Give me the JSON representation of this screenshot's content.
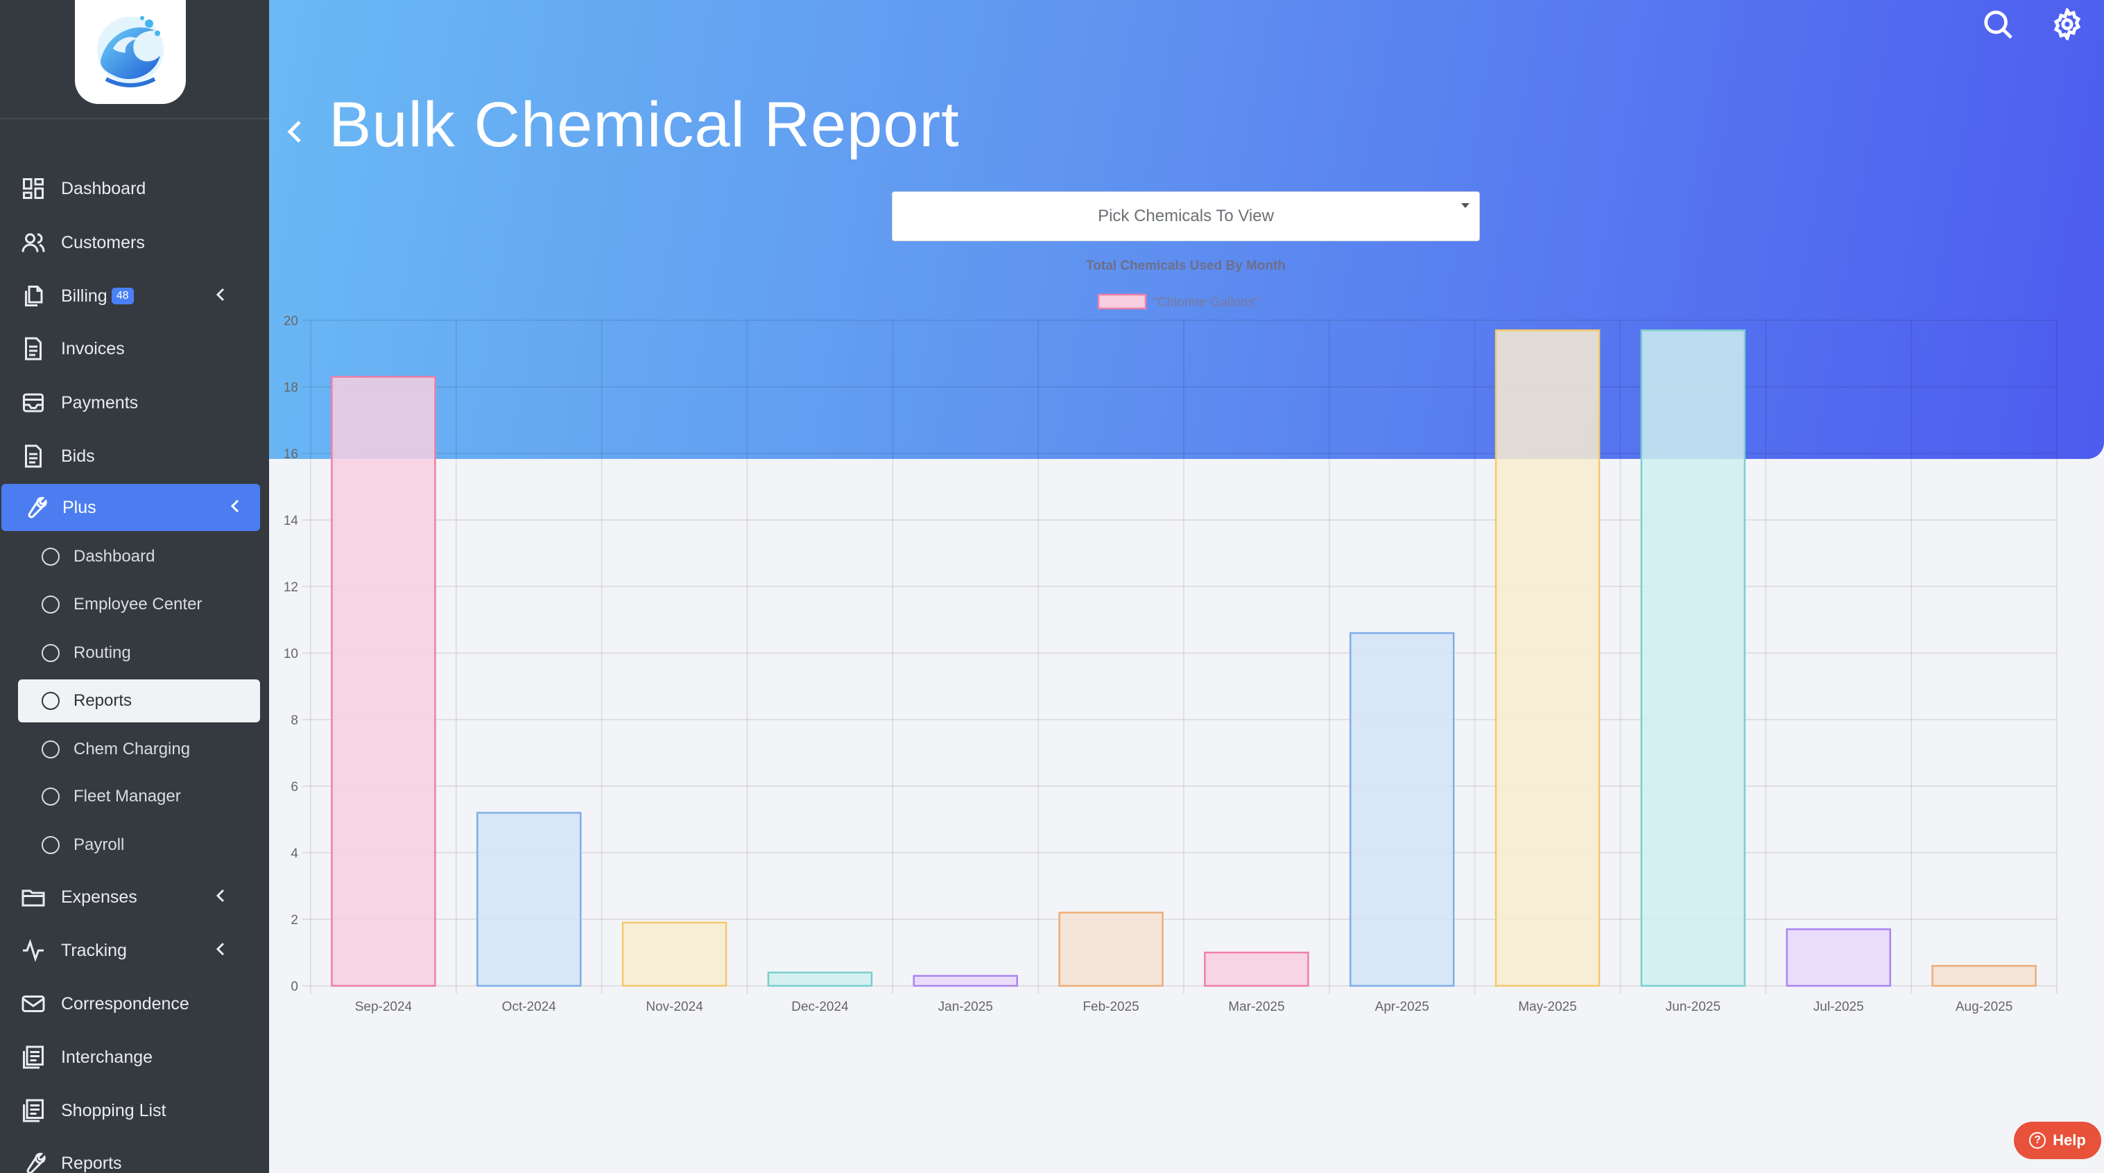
{
  "sidebar": {
    "logo_alt": "logo",
    "items": [
      {
        "label": "Dashboard",
        "icon": "dashboard-icon"
      },
      {
        "label": "Customers",
        "icon": "users-icon"
      },
      {
        "label": "Billing",
        "icon": "billing-icon",
        "badge": "48"
      },
      {
        "label": "Invoices",
        "icon": "document-icon"
      },
      {
        "label": "Payments",
        "icon": "inbox-icon"
      },
      {
        "label": "Bids",
        "icon": "document-icon"
      },
      {
        "label": "Plus",
        "icon": "wrench-icon",
        "active": true
      },
      {
        "label": "Expenses",
        "icon": "folder-icon"
      },
      {
        "label": "Tracking",
        "icon": "activity-icon"
      },
      {
        "label": "Correspondence",
        "icon": "mail-icon"
      },
      {
        "label": "Interchange",
        "icon": "stack-icon"
      },
      {
        "label": "Shopping List",
        "icon": "stack-icon"
      },
      {
        "label": "Reports",
        "icon": "wrench-icon"
      }
    ],
    "plus_sub_items": [
      {
        "label": "Dashboard"
      },
      {
        "label": "Employee Center"
      },
      {
        "label": "Routing"
      },
      {
        "label": "Reports",
        "selected": true
      },
      {
        "label": "Chem Charging"
      },
      {
        "label": "Fleet Manager"
      },
      {
        "label": "Payroll"
      }
    ]
  },
  "header": {
    "title": "Bulk Chemical Report"
  },
  "filter": {
    "placeholder": "Pick Chemicals To View"
  },
  "help": {
    "label": "Help"
  },
  "colors": {
    "accent": "#4c7df0",
    "sidebar_bg": "#353a40",
    "hero_start": "#6ab9f4",
    "hero_end": "#4d5bef",
    "help": "#e8513a"
  },
  "chart_data": {
    "type": "bar",
    "title": "Total Chemicals Used By Month",
    "legend": [
      "\"Chlorine Gallons\""
    ],
    "legend_position": "top-center",
    "categories": [
      "Sep-2024",
      "Oct-2024",
      "Nov-2024",
      "Dec-2024",
      "Jan-2025",
      "Feb-2025",
      "Mar-2025",
      "Apr-2025",
      "May-2025",
      "Jun-2025",
      "Jul-2025",
      "Aug-2025"
    ],
    "series": [
      {
        "name": "\"Chlorine Gallons\"",
        "values": [
          18.3,
          5.2,
          1.9,
          0.4,
          0.3,
          2.2,
          1.0,
          10.6,
          19.7,
          19.7,
          1.7,
          0.6
        ]
      }
    ],
    "bar_fills": [
      "#f7cfe0",
      "#d2e3f7",
      "#f8ecd0",
      "#cfeeee",
      "#e6d8fb",
      "#f5e2d2"
    ],
    "bar_strokes": [
      "#ef7fa6",
      "#7faee8",
      "#f3c967",
      "#79cfcd",
      "#a985f0",
      "#ecad78"
    ],
    "ylim": [
      0,
      20
    ],
    "yticks": [
      0,
      2,
      4,
      6,
      8,
      10,
      12,
      14,
      16,
      18,
      20
    ],
    "grid": true
  }
}
